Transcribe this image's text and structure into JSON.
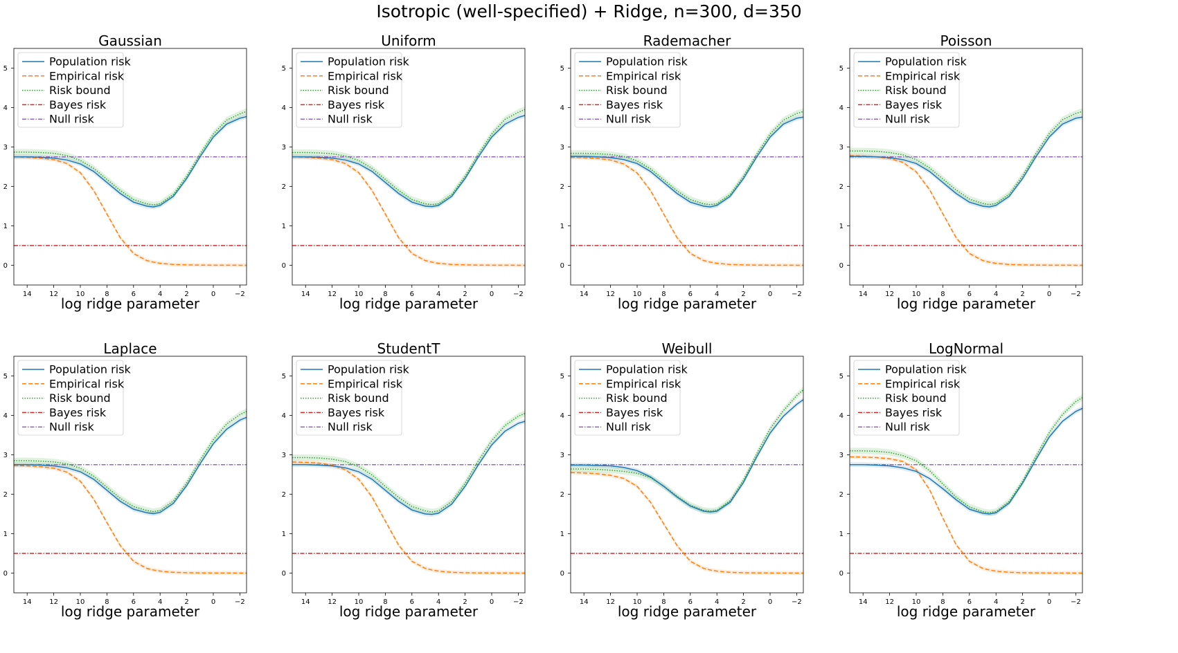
{
  "figure": {
    "suptitle": "Isotropic (well-specified) + Ridge, n=300, d=350"
  },
  "chart_data": {
    "type": "line",
    "xlabel": "log ridge parameter",
    "xlim": [
      15,
      -2.5
    ],
    "ylim": [
      -0.5,
      5.5
    ],
    "xticks": [
      14,
      12,
      10,
      8,
      6,
      4,
      2,
      0,
      -2
    ],
    "xtick_labels": [
      "14",
      "12",
      "10",
      "8",
      "6",
      "4",
      "2",
      "0",
      "−2"
    ],
    "yticks": [
      0,
      1,
      2,
      3,
      4,
      5
    ],
    "ytick_labels": [
      "0",
      "1",
      "2",
      "3",
      "4",
      "5"
    ],
    "legend_position": "upper-left",
    "x": [
      15,
      14,
      13,
      12,
      11,
      10,
      9,
      8,
      7,
      6,
      5,
      4.5,
      4,
      3,
      2,
      1,
      0,
      -1,
      -2,
      -2.5
    ],
    "series_styles": [
      {
        "name": "Population risk",
        "color": "#1f77b4",
        "dash": ""
      },
      {
        "name": "Empirical risk",
        "color": "#ff7f0e",
        "dash": "6,3"
      },
      {
        "name": "Risk bound",
        "color": "#2ca02c",
        "dash": "1.5,2"
      },
      {
        "name": "Bayes risk",
        "color": "#d62728",
        "dash": "6,2,1.5,2"
      },
      {
        "name": "Null risk",
        "color": "#9467bd",
        "dash": "6,2,1.5,2"
      }
    ],
    "panels": [
      {
        "title": "Gaussian",
        "population": [
          2.75,
          2.75,
          2.74,
          2.72,
          2.67,
          2.57,
          2.38,
          2.1,
          1.82,
          1.6,
          1.5,
          1.48,
          1.52,
          1.75,
          2.2,
          2.75,
          3.25,
          3.58,
          3.73,
          3.77
        ],
        "empirical": [
          2.75,
          2.74,
          2.72,
          2.68,
          2.58,
          2.35,
          1.9,
          1.3,
          0.7,
          0.3,
          0.12,
          0.08,
          0.05,
          0.02,
          0.01,
          0.005,
          0.003,
          0.002,
          0.001,
          0.001
        ],
        "bound": [
          2.87,
          2.87,
          2.86,
          2.84,
          2.78,
          2.66,
          2.46,
          2.18,
          1.9,
          1.67,
          1.56,
          1.53,
          1.56,
          1.8,
          2.26,
          2.82,
          3.33,
          3.68,
          3.84,
          3.9
        ],
        "bayes": 0.5,
        "null": 2.75
      },
      {
        "title": "Uniform",
        "population": [
          2.75,
          2.75,
          2.74,
          2.72,
          2.67,
          2.57,
          2.38,
          2.1,
          1.82,
          1.6,
          1.5,
          1.49,
          1.52,
          1.75,
          2.2,
          2.75,
          3.25,
          3.58,
          3.75,
          3.8
        ],
        "empirical": [
          2.75,
          2.74,
          2.72,
          2.68,
          2.58,
          2.35,
          1.9,
          1.3,
          0.7,
          0.3,
          0.12,
          0.08,
          0.05,
          0.02,
          0.01,
          0.005,
          0.003,
          0.002,
          0.001,
          0.001
        ],
        "bound": [
          2.86,
          2.86,
          2.85,
          2.83,
          2.77,
          2.66,
          2.46,
          2.18,
          1.9,
          1.67,
          1.56,
          1.54,
          1.56,
          1.8,
          2.26,
          2.82,
          3.33,
          3.7,
          3.88,
          3.95
        ],
        "bayes": 0.5,
        "null": 2.75
      },
      {
        "title": "Rademacher",
        "population": [
          2.76,
          2.76,
          2.75,
          2.73,
          2.68,
          2.58,
          2.38,
          2.1,
          1.82,
          1.6,
          1.5,
          1.48,
          1.52,
          1.75,
          2.2,
          2.75,
          3.25,
          3.58,
          3.73,
          3.76
        ],
        "empirical": [
          2.74,
          2.73,
          2.71,
          2.67,
          2.57,
          2.34,
          1.9,
          1.3,
          0.7,
          0.3,
          0.12,
          0.08,
          0.05,
          0.02,
          0.01,
          0.005,
          0.003,
          0.002,
          0.001,
          0.001
        ],
        "bound": [
          2.84,
          2.84,
          2.83,
          2.81,
          2.76,
          2.65,
          2.45,
          2.17,
          1.89,
          1.67,
          1.56,
          1.54,
          1.56,
          1.8,
          2.26,
          2.82,
          3.33,
          3.68,
          3.85,
          3.9
        ],
        "bayes": 0.5,
        "null": 2.75
      },
      {
        "title": "Poisson",
        "population": [
          2.76,
          2.76,
          2.75,
          2.73,
          2.68,
          2.58,
          2.38,
          2.1,
          1.82,
          1.6,
          1.5,
          1.48,
          1.52,
          1.75,
          2.2,
          2.75,
          3.25,
          3.58,
          3.73,
          3.76
        ],
        "empirical": [
          2.78,
          2.77,
          2.75,
          2.71,
          2.61,
          2.37,
          1.92,
          1.31,
          0.7,
          0.3,
          0.12,
          0.08,
          0.05,
          0.02,
          0.01,
          0.005,
          0.003,
          0.002,
          0.001,
          0.001
        ],
        "bound": [
          2.9,
          2.9,
          2.89,
          2.86,
          2.8,
          2.68,
          2.47,
          2.19,
          1.91,
          1.68,
          1.57,
          1.54,
          1.57,
          1.81,
          2.27,
          2.83,
          3.34,
          3.69,
          3.85,
          3.9
        ],
        "bayes": 0.5,
        "null": 2.75
      },
      {
        "title": "Laplace",
        "population": [
          2.75,
          2.75,
          2.74,
          2.72,
          2.67,
          2.57,
          2.38,
          2.1,
          1.82,
          1.62,
          1.53,
          1.51,
          1.54,
          1.77,
          2.22,
          2.77,
          3.28,
          3.65,
          3.88,
          3.95
        ],
        "empirical": [
          2.73,
          2.72,
          2.7,
          2.66,
          2.56,
          2.33,
          1.88,
          1.28,
          0.7,
          0.3,
          0.12,
          0.08,
          0.05,
          0.02,
          0.01,
          0.005,
          0.003,
          0.002,
          0.001,
          0.001
        ],
        "bound": [
          2.85,
          2.85,
          2.84,
          2.82,
          2.77,
          2.66,
          2.46,
          2.18,
          1.9,
          1.69,
          1.59,
          1.56,
          1.59,
          1.83,
          2.29,
          2.86,
          3.38,
          3.78,
          4.02,
          4.1
        ],
        "bayes": 0.5,
        "null": 2.75
      },
      {
        "title": "StudentT",
        "population": [
          2.75,
          2.75,
          2.74,
          2.72,
          2.67,
          2.57,
          2.38,
          2.1,
          1.82,
          1.6,
          1.5,
          1.49,
          1.52,
          1.75,
          2.2,
          2.75,
          3.25,
          3.6,
          3.8,
          3.85
        ],
        "empirical": [
          2.82,
          2.81,
          2.79,
          2.74,
          2.62,
          2.38,
          1.93,
          1.32,
          0.71,
          0.3,
          0.12,
          0.08,
          0.05,
          0.02,
          0.01,
          0.005,
          0.003,
          0.002,
          0.001,
          0.001
        ],
        "bound": [
          2.93,
          2.93,
          2.92,
          2.89,
          2.83,
          2.7,
          2.49,
          2.2,
          1.92,
          1.69,
          1.58,
          1.55,
          1.58,
          1.82,
          2.28,
          2.85,
          3.36,
          3.74,
          3.98,
          4.05
        ],
        "bayes": 0.5,
        "null": 2.75
      },
      {
        "title": "Weibull",
        "population": [
          2.74,
          2.74,
          2.73,
          2.72,
          2.68,
          2.6,
          2.44,
          2.2,
          1.93,
          1.7,
          1.57,
          1.55,
          1.57,
          1.8,
          2.3,
          2.95,
          3.55,
          3.98,
          4.28,
          4.4
        ],
        "empirical": [
          2.55,
          2.54,
          2.52,
          2.48,
          2.4,
          2.2,
          1.8,
          1.25,
          0.7,
          0.3,
          0.12,
          0.08,
          0.05,
          0.02,
          0.01,
          0.005,
          0.003,
          0.002,
          0.001,
          0.001
        ],
        "bound": [
          2.64,
          2.64,
          2.63,
          2.61,
          2.58,
          2.53,
          2.42,
          2.21,
          1.95,
          1.72,
          1.59,
          1.57,
          1.59,
          1.84,
          2.36,
          3.03,
          3.66,
          4.12,
          4.5,
          4.65
        ],
        "bayes": 0.5,
        "null": 2.75
      },
      {
        "title": "LogNormal",
        "population": [
          2.75,
          2.75,
          2.74,
          2.72,
          2.67,
          2.58,
          2.4,
          2.14,
          1.86,
          1.62,
          1.52,
          1.5,
          1.53,
          1.78,
          2.28,
          2.88,
          3.45,
          3.85,
          4.1,
          4.18
        ],
        "empirical": [
          2.95,
          2.94,
          2.93,
          2.9,
          2.83,
          2.62,
          2.12,
          1.4,
          0.72,
          0.3,
          0.12,
          0.08,
          0.05,
          0.02,
          0.01,
          0.005,
          0.003,
          0.002,
          0.001,
          0.001
        ],
        "bound": [
          3.1,
          3.1,
          3.09,
          3.06,
          2.98,
          2.85,
          2.6,
          2.26,
          1.93,
          1.68,
          1.56,
          1.53,
          1.56,
          1.82,
          2.33,
          2.96,
          3.56,
          4.02,
          4.35,
          4.45
        ],
        "bayes": 0.5,
        "null": 2.75
      }
    ]
  }
}
